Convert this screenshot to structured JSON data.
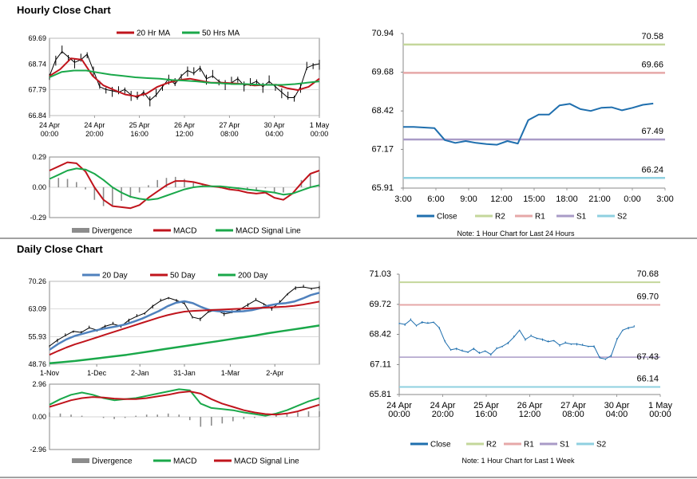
{
  "sections": {
    "hourly_title": "Hourly Close Chart",
    "daily_title": "Daily Close Chart"
  },
  "colors": {
    "close": "#1f6fae",
    "ma20": "#c0141c",
    "ma50": "#1aa84a",
    "ma200": "#1aa84a",
    "macd_red": "#c0141c",
    "signal_green": "#1aa84a",
    "divergence": "#8c8c8c",
    "r2": "#c4d79b",
    "r1": "#e6a8a8",
    "s1": "#a99bc7",
    "s2": "#8fd0e0",
    "price_black": "#000000",
    "day20_blue": "#4f81bd"
  },
  "chart_data": [
    {
      "id": "hourly_price",
      "type": "line",
      "title": "Hourly Close Chart",
      "y_ticks": [
        "69.69",
        "68.74",
        "67.79",
        "66.84"
      ],
      "ylim": [
        66.84,
        69.69
      ],
      "x_ticks": [
        "24 Apr\n00:00",
        "24 Apr\n20:00",
        "25 Apr\n16:00",
        "26 Apr\n12:00",
        "27 Apr\n08:00",
        "30 Apr\n04:00",
        "1 May\n00:00"
      ],
      "legend": [
        "20 Hr MA",
        "50 Hrs MA"
      ],
      "series": [
        {
          "name": "Close",
          "values": [
            68.3,
            68.9,
            69.2,
            69.0,
            68.8,
            68.9,
            69.1,
            68.5,
            67.9,
            67.8,
            67.75,
            67.7,
            67.8,
            67.6,
            67.5,
            67.7,
            67.4,
            67.6,
            67.9,
            68.2,
            68.0,
            68.3,
            68.5,
            68.4,
            68.6,
            68.2,
            68.3,
            68.1,
            68.0,
            68.05,
            68.2,
            67.95,
            68.0,
            68.1,
            67.9,
            68.1,
            67.9,
            67.7,
            67.5,
            67.5,
            67.9,
            68.6,
            68.7,
            68.75
          ]
        },
        {
          "name": "20 Hr MA",
          "values": [
            68.3,
            68.55,
            68.95,
            68.9,
            68.3,
            67.95,
            67.78,
            67.62,
            67.55,
            67.65,
            67.9,
            68.05,
            68.15,
            68.2,
            68.12,
            68.05,
            68.05,
            68.03,
            68.0,
            67.95,
            67.97,
            67.98,
            67.85,
            67.78,
            67.9,
            68.2
          ]
        },
        {
          "name": "50 Hrs MA",
          "values": [
            68.25,
            68.45,
            68.5,
            68.5,
            68.42,
            68.35,
            68.3,
            68.25,
            68.22,
            68.2,
            68.15,
            68.13,
            68.1,
            68.05,
            68.03,
            68.0,
            68.0,
            67.98,
            67.97,
            67.97,
            68.0,
            68.05,
            68.1
          ]
        }
      ]
    },
    {
      "id": "hourly_macd",
      "type": "line",
      "y_ticks": [
        "0.29",
        "0.00",
        "-0.29"
      ],
      "ylim": [
        -0.29,
        0.29
      ],
      "legend": [
        "Divergence",
        "MACD",
        "MACD Signal Line"
      ],
      "series": [
        {
          "name": "MACD",
          "values": [
            0.16,
            0.2,
            0.24,
            0.23,
            0.15,
            0.0,
            -0.12,
            -0.18,
            -0.19,
            -0.2,
            -0.17,
            -0.1,
            -0.04,
            0.02,
            0.06,
            0.06,
            0.05,
            0.03,
            0.01,
            0.0,
            -0.02,
            -0.03,
            -0.05,
            -0.06,
            -0.05,
            -0.1,
            -0.12,
            -0.06,
            0.04,
            0.13,
            0.16
          ]
        },
        {
          "name": "MACD Signal Line",
          "values": [
            0.08,
            0.12,
            0.16,
            0.18,
            0.17,
            0.13,
            0.07,
            0.0,
            -0.05,
            -0.09,
            -0.11,
            -0.12,
            -0.11,
            -0.08,
            -0.05,
            -0.02,
            0.0,
            0.01,
            0.01,
            0.01,
            0.0,
            -0.01,
            -0.02,
            -0.03,
            -0.04,
            -0.05,
            -0.07,
            -0.06,
            -0.03,
            0.0,
            0.02
          ]
        },
        {
          "name": "Divergence",
          "values": [
            0.07,
            0.09,
            0.08,
            0.05,
            -0.02,
            -0.12,
            -0.18,
            -0.18,
            -0.13,
            -0.1,
            -0.05,
            0.02,
            0.07,
            0.09,
            0.1,
            0.08,
            0.05,
            0.02,
            0.0,
            -0.01,
            -0.02,
            -0.02,
            -0.03,
            -0.03,
            -0.01,
            -0.05,
            -0.05,
            0.0,
            0.07,
            0.13,
            0.14
          ]
        }
      ]
    },
    {
      "id": "hourly_24h",
      "type": "line",
      "y_ticks": [
        "70.94",
        "69.68",
        "68.42",
        "67.17",
        "65.91"
      ],
      "ylim": [
        65.91,
        70.94
      ],
      "x_ticks": [
        "3:00",
        "6:00",
        "9:00",
        "12:00",
        "15:00",
        "18:00",
        "21:00",
        "0:00",
        "3:00"
      ],
      "levels": [
        {
          "name": "R2",
          "value": 70.58,
          "label": "70.58"
        },
        {
          "name": "R1",
          "value": 69.66,
          "label": "69.66"
        },
        {
          "name": "S1",
          "value": 67.49,
          "label": "67.49"
        },
        {
          "name": "S2",
          "value": 66.24,
          "label": "66.24"
        }
      ],
      "legend": [
        "Close",
        "R2",
        "R1",
        "S1",
        "S2"
      ],
      "note": "Note: 1 Hour Chart for Last 24 Hours",
      "x": [
        0,
        1,
        2,
        3,
        4,
        5,
        6,
        7,
        8,
        9,
        10,
        11,
        12,
        13,
        14,
        15,
        16,
        17,
        18,
        19,
        20,
        21,
        22,
        23,
        24
      ],
      "values": [
        67.9,
        67.9,
        67.88,
        67.86,
        67.47,
        67.38,
        67.44,
        67.38,
        67.34,
        67.32,
        67.44,
        67.36,
        68.12,
        68.3,
        68.3,
        68.6,
        68.65,
        68.48,
        68.42,
        68.52,
        68.54,
        68.44,
        68.52,
        68.62,
        68.66
      ]
    },
    {
      "id": "daily_price",
      "type": "line",
      "title": "Daily Close Chart",
      "y_ticks": [
        "70.26",
        "63.09",
        "55.93",
        "48.76"
      ],
      "ylim": [
        48.76,
        70.26
      ],
      "x_ticks": [
        "1-Nov",
        "1-Dec",
        "2-Jan",
        "31-Jan",
        "1-Mar",
        "2-Apr"
      ],
      "legend": [
        "20 Day",
        "50 Day",
        "200 Day"
      ],
      "series": [
        {
          "name": "Close",
          "values": [
            53.5,
            55.0,
            56.2,
            57.3,
            57.0,
            58.2,
            57.6,
            58.6,
            59.2,
            58.6,
            60.2,
            61.2,
            62.0,
            63.8,
            65.2,
            66.0,
            65.3,
            64.5,
            61.0,
            60.5,
            62.3,
            62.8,
            61.8,
            62.2,
            63.0,
            64.2,
            65.4,
            64.4,
            63.2,
            64.8,
            67.0,
            68.6,
            68.8,
            68.4,
            68.7
          ]
        },
        {
          "name": "20 Day",
          "values": [
            52.5,
            54.0,
            55.2,
            56.1,
            56.7,
            57.3,
            57.8,
            58.2,
            58.6,
            59.1,
            59.8,
            60.6,
            61.6,
            62.6,
            63.8,
            64.7,
            65.1,
            64.6,
            63.6,
            62.8,
            62.5,
            62.4,
            62.4,
            62.5,
            62.8,
            63.3,
            64.0,
            64.4,
            64.6,
            65.0,
            65.8,
            66.7,
            67.3
          ]
        },
        {
          "name": "50 Day",
          "values": [
            51.2,
            52.2,
            53.1,
            53.9,
            54.6,
            55.3,
            56.0,
            56.7,
            57.4,
            58.1,
            58.8,
            59.5,
            60.2,
            60.9,
            61.5,
            62.0,
            62.4,
            62.6,
            62.7,
            62.8,
            62.9,
            63.0,
            63.1,
            63.2,
            63.3,
            63.4,
            63.5,
            63.6,
            63.7,
            63.9,
            64.2,
            64.6,
            65.0
          ]
        },
        {
          "name": "200 Day",
          "values": [
            49.0,
            49.3,
            49.6,
            50.0,
            50.4,
            50.8,
            51.2,
            51.7,
            52.2,
            52.7,
            53.2,
            53.7,
            54.2,
            54.7,
            55.2,
            55.7,
            56.2,
            56.8,
            57.3,
            57.8,
            58.3,
            58.8
          ]
        }
      ]
    },
    {
      "id": "daily_macd",
      "type": "line",
      "y_ticks": [
        "2.96",
        "0.00",
        "-2.96"
      ],
      "ylim": [
        -2.96,
        2.96
      ],
      "legend": [
        "Divergence",
        "MACD",
        "MACD Signal Line"
      ],
      "series": [
        {
          "name": "MACD",
          "values": [
            1.1,
            1.6,
            2.0,
            2.2,
            2.0,
            1.7,
            1.5,
            1.6,
            1.7,
            1.9,
            2.1,
            2.3,
            2.5,
            2.4,
            1.2,
            0.8,
            0.7,
            0.6,
            0.4,
            0.25,
            0.1,
            0.3,
            0.6,
            1.0,
            1.4,
            1.7
          ]
        },
        {
          "name": "MACD Signal Line",
          "values": [
            0.9,
            1.2,
            1.5,
            1.7,
            1.8,
            1.75,
            1.65,
            1.6,
            1.6,
            1.7,
            1.85,
            2.0,
            2.2,
            2.3,
            2.1,
            1.6,
            1.2,
            0.9,
            0.6,
            0.4,
            0.25,
            0.2,
            0.3,
            0.5,
            0.8,
            1.1
          ]
        },
        {
          "name": "Divergence",
          "values": [
            0.4,
            0.3,
            0.2,
            0.1,
            0.0,
            -0.1,
            -0.2,
            -0.1,
            0.1,
            0.2,
            0.2,
            0.3,
            0.2,
            -0.3,
            -0.9,
            -0.8,
            -0.6,
            -0.4,
            -0.2,
            -0.1,
            0.0,
            0.2,
            0.3,
            0.4,
            0.5,
            0.5
          ]
        }
      ]
    },
    {
      "id": "daily_week",
      "type": "line",
      "y_ticks": [
        "71.03",
        "69.72",
        "68.42",
        "67.11",
        "65.81"
      ],
      "ylim": [
        65.81,
        71.03
      ],
      "x_ticks": [
        "24 Apr\n00:00",
        "24 Apr\n20:00",
        "25 Apr\n16:00",
        "26 Apr\n12:00",
        "27 Apr\n08:00",
        "30 Apr\n04:00",
        "1 May\n00:00"
      ],
      "levels": [
        {
          "name": "R2",
          "value": 70.68,
          "label": "70.68"
        },
        {
          "name": "R1",
          "value": 69.7,
          "label": "69.70"
        },
        {
          "name": "S1",
          "value": 67.43,
          "label": "67.43"
        },
        {
          "name": "S2",
          "value": 66.14,
          "label": "66.14"
        }
      ],
      "legend": [
        "Close",
        "R2",
        "R1",
        "S1",
        "S2"
      ],
      "note": "Note: 1 Hour Chart for Last 1 Week",
      "values": [
        68.9,
        68.85,
        69.05,
        68.8,
        68.95,
        68.9,
        68.95,
        68.7,
        68.1,
        67.75,
        67.8,
        67.7,
        67.65,
        67.8,
        67.6,
        67.7,
        67.55,
        67.8,
        67.9,
        68.05,
        68.3,
        68.6,
        68.2,
        68.35,
        68.25,
        68.2,
        68.1,
        68.15,
        67.95,
        68.05,
        68.0,
        68.0,
        67.95,
        67.9,
        67.9,
        67.4,
        67.35,
        67.5,
        68.2,
        68.6,
        68.7,
        68.75
      ]
    }
  ]
}
